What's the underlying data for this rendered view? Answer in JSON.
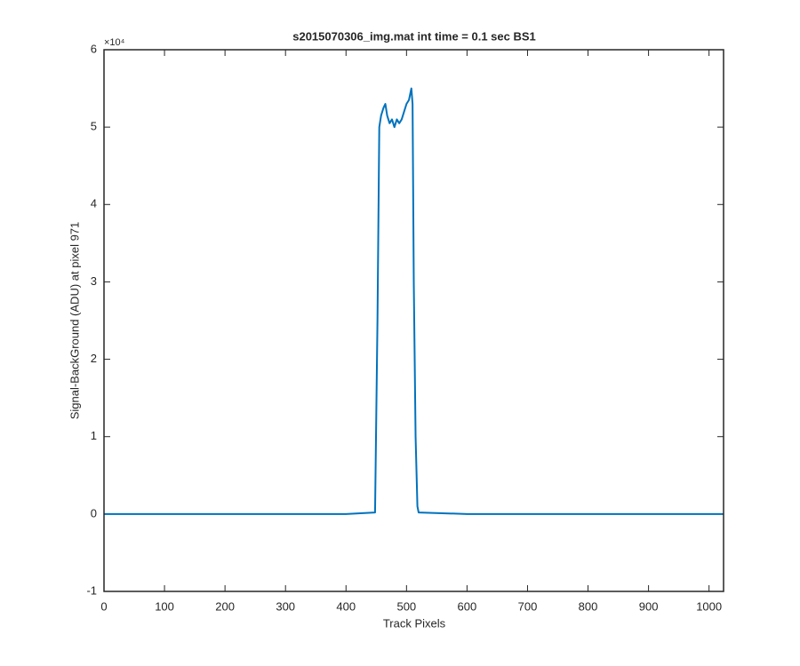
{
  "chart_data": {
    "type": "line",
    "title": "s2015070306_img.mat int time = 0.1 sec   BS1",
    "x_label": "Track Pixels",
    "y_label": "Signal-BackGround (ADU) at pixel 971",
    "y_exponent": "×10⁴",
    "x": [
      0,
      100,
      200,
      300,
      400,
      448,
      452,
      455,
      458,
      462,
      465,
      468,
      472,
      476,
      480,
      484,
      488,
      492,
      496,
      500,
      504,
      508,
      510,
      512,
      515,
      518,
      520,
      600,
      700,
      800,
      900,
      1024
    ],
    "series": [
      {
        "name": "BS1",
        "color": "#0072bd",
        "values": [
          0,
          0,
          0,
          0,
          0,
          0.02,
          2.5,
          5.0,
          5.15,
          5.25,
          5.3,
          5.15,
          5.05,
          5.1,
          5.0,
          5.1,
          5.05,
          5.1,
          5.2,
          5.3,
          5.35,
          5.5,
          5.3,
          3.0,
          1.0,
          0.1,
          0.02,
          0,
          0,
          0,
          0,
          0
        ]
      }
    ],
    "xlim": [
      0,
      1024
    ],
    "xticks": [
      0,
      100,
      200,
      300,
      400,
      500,
      600,
      700,
      800,
      900,
      1000
    ],
    "ylim": [
      -1,
      6
    ],
    "yticks": [
      -1,
      0,
      1,
      2,
      3,
      4,
      5,
      6
    ],
    "grid": false
  }
}
